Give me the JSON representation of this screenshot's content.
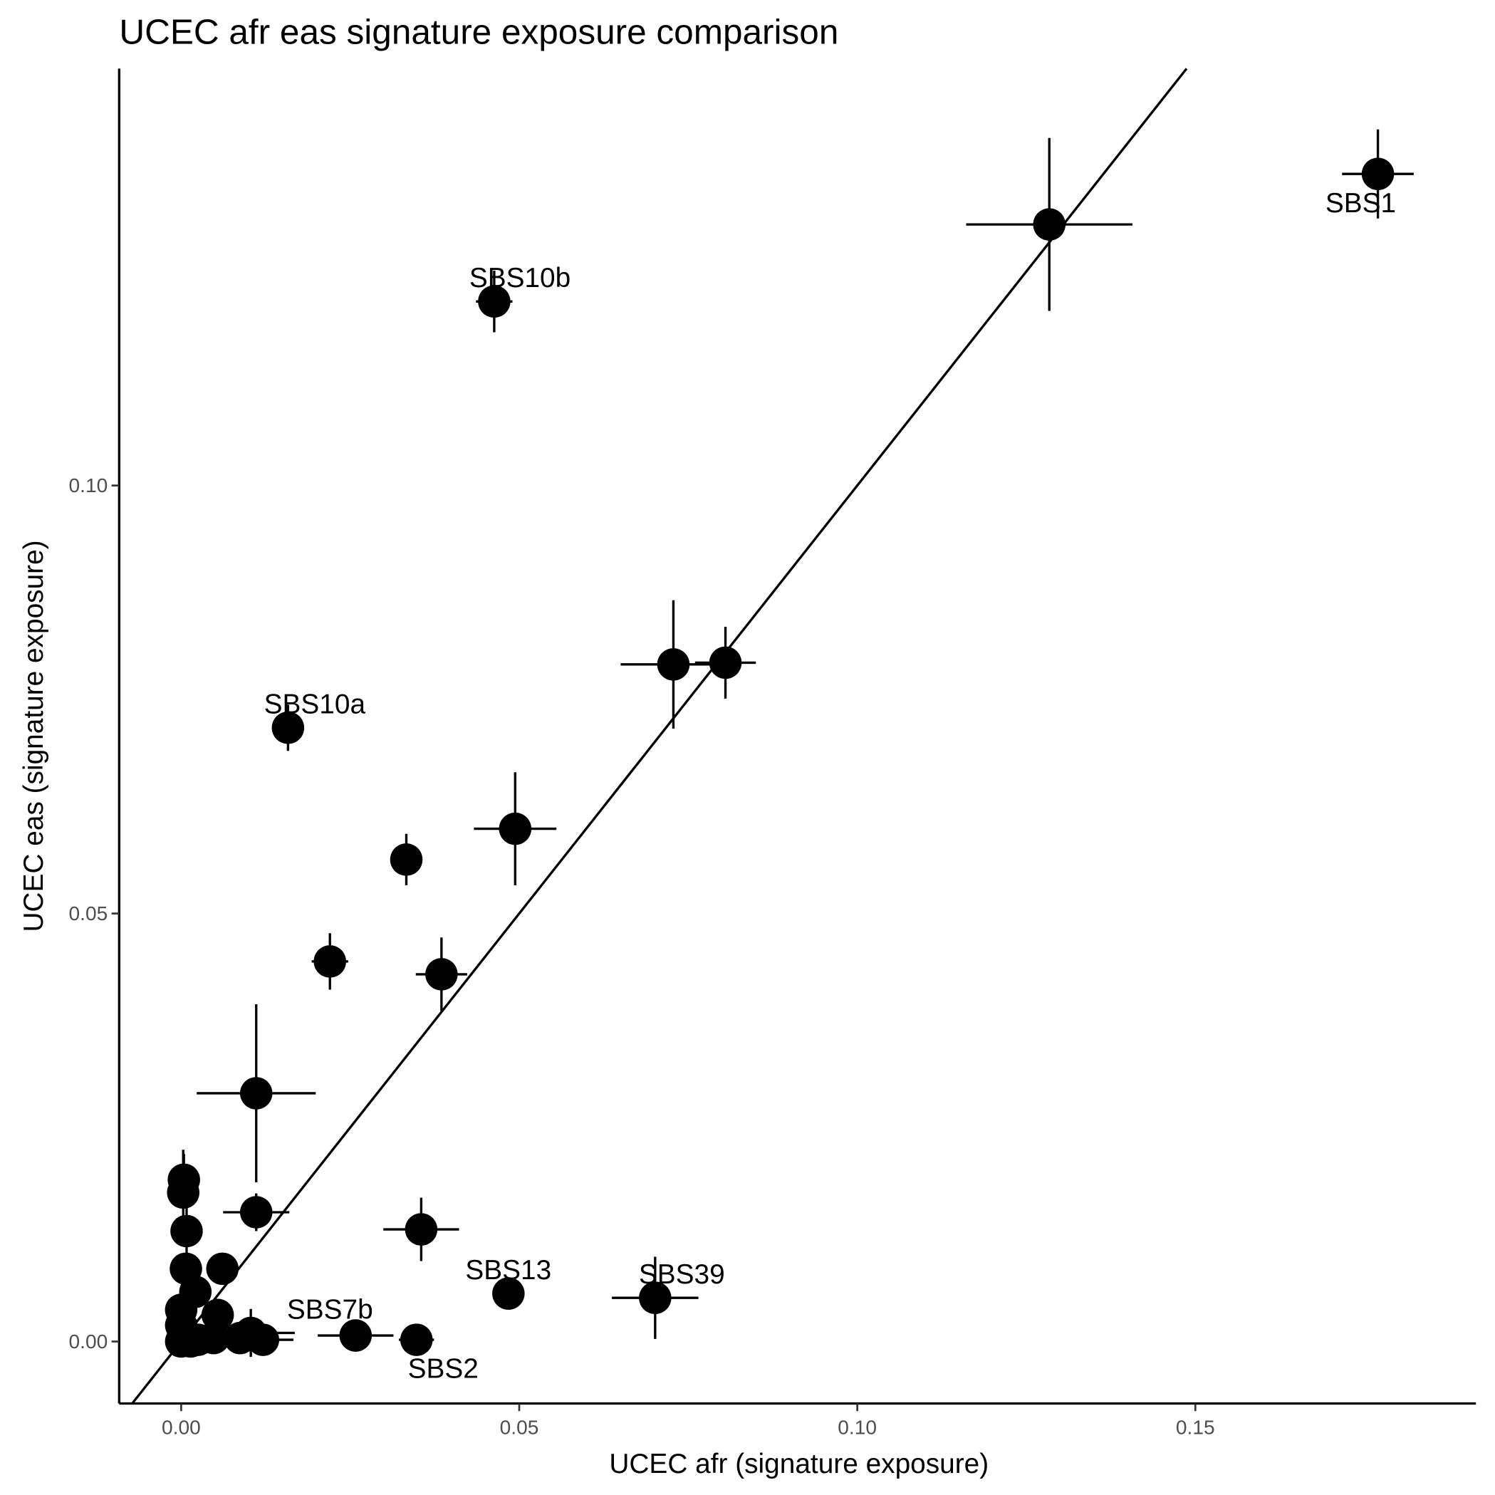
{
  "chart_data": {
    "type": "scatter",
    "title": "UCEC afr eas signature exposure comparison",
    "x_label": "UCEC afr (signature exposure)",
    "y_label": "UCEC eas (signature exposure)",
    "color": "#000000",
    "reference_line": {
      "slope": 1,
      "intercept": 0
    },
    "xlim": [
      -0.00917,
      0.1915
    ],
    "ylim": [
      -0.00724,
      0.1487
    ],
    "xticks": [
      {
        "value": 0,
        "label": "0.00"
      },
      0.05,
      {
        "value": 0.1,
        "label": "0.10"
      },
      0.15
    ],
    "yticks": [
      {
        "value": 0,
        "label": "0.00"
      },
      0.05,
      {
        "value": 0.1,
        "label": "0.10"
      }
    ],
    "x": [
      0.177,
      0.1284,
      0.0463,
      0.0728,
      0.0805,
      0.0158,
      0.0494,
      0.0333,
      0.022,
      0.0385,
      0.0111,
      0.0111,
      0.0355,
      0.0484,
      0.0701,
      0.0348,
      0.0258,
      0.0103,
      0.0121,
      0.0087,
      0.0004,
      0.0003,
      0.0008,
      0.0007,
      0.0061,
      0.0021,
      0.0054,
      0.0048,
      0,
      0,
      0,
      0.0014,
      0.0025
    ],
    "y": [
      0.1364,
      0.1305,
      0.1215,
      0.0791,
      0.0793,
      0.0717,
      0.0599,
      0.0563,
      0.0444,
      0.0429,
      0.029,
      0.0151,
      0.0131,
      0.0056,
      0.0051,
      0.0002,
      0.0007,
      0.001,
      0.0002,
      0.0004,
      0.0189,
      0.0174,
      0.0129,
      0.0085,
      0.0085,
      0.0058,
      0.0031,
      0.0004,
      0.0037,
      0.0019,
      0,
      0,
      0.0002
    ],
    "xerr": [
      0.0053,
      0.0123,
      0.0027,
      0.0078,
      0.0045,
      0.0011,
      0.0061,
      0.0017,
      0.0027,
      0.0038,
      0.0088,
      0.0049,
      0.0056,
      0,
      0.0064,
      0.0026,
      0.0056,
      0.0065,
      0.0045,
      0,
      0,
      0,
      0,
      0,
      0,
      0,
      0,
      0,
      0,
      0,
      0,
      0,
      0
    ],
    "yerr": [
      0.0052,
      0.0101,
      0.0036,
      0.0075,
      0.0042,
      0.0027,
      0.0066,
      0.003,
      0.0033,
      0.0043,
      0.0104,
      0.0022,
      0.0037,
      0,
      0.0048,
      0,
      0,
      0.0028,
      0,
      0,
      0.003,
      0.005,
      0.003,
      0,
      0,
      0,
      0,
      0,
      0,
      0,
      0,
      0,
      0
    ],
    "labels": [
      "SBS1",
      null,
      "SBS10b",
      null,
      null,
      "SBS10a",
      null,
      null,
      null,
      null,
      null,
      null,
      null,
      "SBS13",
      "SBS39",
      "SBS2",
      null,
      "SBS7b",
      null,
      null,
      null,
      null,
      null,
      null,
      null,
      null,
      null,
      null,
      null,
      null,
      null,
      null,
      null
    ]
  }
}
